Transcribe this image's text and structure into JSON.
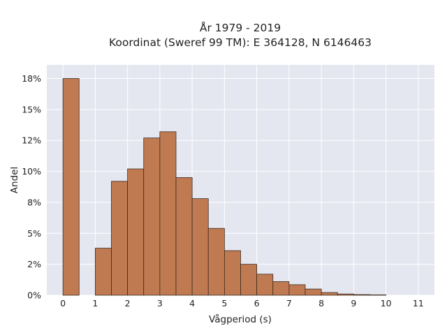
{
  "chart_data": {
    "type": "bar",
    "title": "År 1979 - 2019",
    "subtitle": "Koordinat (Sweref 99 TM): E 364128, N 6146463",
    "xlabel": "Vågperiod (s)",
    "ylabel": "Andel",
    "bin_width": 0.5,
    "xlim": [
      -0.5,
      11.5
    ],
    "ylim": [
      0,
      18.6
    ],
    "x_ticks": [
      0,
      1,
      2,
      3,
      4,
      5,
      6,
      7,
      8,
      9,
      10,
      11
    ],
    "y_ticks": [
      0,
      2.5,
      5,
      7.5,
      10,
      12.5,
      15,
      17.5
    ],
    "y_tick_labels": [
      "0%",
      "2%",
      "5%",
      "8%",
      "10%",
      "12%",
      "15%",
      "18%"
    ],
    "bins": [
      {
        "x0": 0.0,
        "value": 17.5
      },
      {
        "x0": 1.0,
        "value": 3.8
      },
      {
        "x0": 1.5,
        "value": 9.2
      },
      {
        "x0": 2.0,
        "value": 10.2
      },
      {
        "x0": 2.5,
        "value": 12.7
      },
      {
        "x0": 3.0,
        "value": 13.2
      },
      {
        "x0": 3.5,
        "value": 9.5
      },
      {
        "x0": 4.0,
        "value": 7.8
      },
      {
        "x0": 4.5,
        "value": 5.4
      },
      {
        "x0": 5.0,
        "value": 3.6
      },
      {
        "x0": 5.5,
        "value": 2.5
      },
      {
        "x0": 6.0,
        "value": 1.7
      },
      {
        "x0": 6.5,
        "value": 1.1
      },
      {
        "x0": 7.0,
        "value": 0.85
      },
      {
        "x0": 7.5,
        "value": 0.5
      },
      {
        "x0": 8.0,
        "value": 0.22
      },
      {
        "x0": 8.5,
        "value": 0.1
      },
      {
        "x0": 9.0,
        "value": 0.05
      },
      {
        "x0": 9.5,
        "value": 0.03
      }
    ],
    "colors": {
      "bar_fill": "#c07a52",
      "bar_stroke": "#3b2a20",
      "plot_background": "#e5e7f0",
      "grid": "#ffffff"
    },
    "grid": true,
    "legend": "none"
  }
}
